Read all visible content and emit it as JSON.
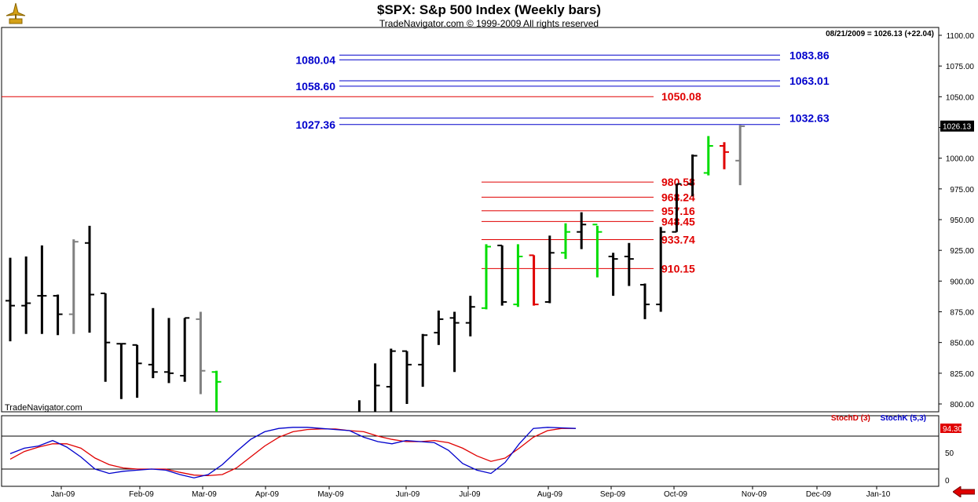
{
  "header": {
    "title": "$SPX:  S&p 500 Index  (Weekly bars)",
    "subtitle": "TradeNavigator.com © 1999-2009 All rights reserved",
    "readout": "08/21/2009 = 1026.13 (+22.04)",
    "watermark": "TradeNavigator.com"
  },
  "icons": {
    "logo": "gold-navigator-logo-icon",
    "scroll": "red-left-arrow-icon"
  },
  "colors": {
    "bar": "#000000",
    "up_bar": "#00dd00",
    "down_bar": "#e00000",
    "neutral_bar": "#808080",
    "support": "#e00000",
    "resistance": "#0000cc",
    "stoch_d": "#e00000",
    "stoch_k": "#0000cc"
  },
  "chart_data": [
    {
      "type": "ohlc",
      "title": "$SPX:  S&p 500 Index  (Weekly bars)",
      "ylim": [
        790,
        1100
      ],
      "yticks": [
        "800.00",
        "825.00",
        "850.00",
        "875.00",
        "900.00",
        "925.00",
        "950.00",
        "975.00",
        "1000.00",
        "1025.00",
        "1050.00",
        "1075.00",
        "1100.00"
      ],
      "last_label": "1026.13",
      "x_labels": [
        "Jan-09",
        "Feb-09",
        "Mar-09",
        "Apr-09",
        "May-09",
        "Jun-09",
        "Jul-09",
        "Aug-09",
        "Sep-09",
        "Oct-09",
        "Nov-09",
        "Dec-09",
        "Jan-10"
      ],
      "bars": [
        {
          "o": 884,
          "h": 919,
          "l": 851,
          "c": 880,
          "k": "b"
        },
        {
          "o": 880,
          "h": 920,
          "l": 857,
          "c": 882,
          "k": "b"
        },
        {
          "o": 888,
          "h": 929,
          "l": 857,
          "c": 888,
          "k": "b"
        },
        {
          "o": 888,
          "h": 889,
          "l": 856,
          "c": 873,
          "k": "b"
        },
        {
          "o": 873,
          "h": 934,
          "l": 857,
          "c": 932,
          "k": "g"
        },
        {
          "o": 931,
          "h": 945,
          "l": 858,
          "c": 889,
          "k": "b"
        },
        {
          "o": 890,
          "h": 890,
          "l": 818,
          "c": 850,
          "k": "b"
        },
        {
          "o": 849,
          "h": 849,
          "l": 804,
          "c": 849,
          "k": "b"
        },
        {
          "o": 848,
          "h": 848,
          "l": 805,
          "c": 833,
          "k": "b"
        },
        {
          "o": 832,
          "h": 878,
          "l": 821,
          "c": 826,
          "k": "b"
        },
        {
          "o": 826,
          "h": 870,
          "l": 817,
          "c": 825,
          "k": "b"
        },
        {
          "o": 823,
          "h": 870,
          "l": 818,
          "c": 870,
          "k": "b"
        },
        {
          "o": 869,
          "h": 875,
          "l": 808,
          "c": 827,
          "k": "g"
        },
        {
          "o": 826,
          "h": 827,
          "l": 790,
          "c": 818,
          "k": "u"
        },
        {
          "o": 790,
          "h": 790,
          "l": 790,
          "c": 790,
          "k": "b"
        },
        {
          "o": 790,
          "h": 790,
          "l": 790,
          "c": 790,
          "k": "b"
        },
        {
          "o": 790,
          "h": 790,
          "l": 790,
          "c": 790,
          "k": "b"
        },
        {
          "o": 790,
          "h": 790,
          "l": 790,
          "c": 790,
          "k": "b"
        },
        {
          "o": 790,
          "h": 790,
          "l": 790,
          "c": 790,
          "k": "b"
        },
        {
          "o": 790,
          "h": 790,
          "l": 790,
          "c": 790,
          "k": "b"
        },
        {
          "o": 790,
          "h": 790,
          "l": 790,
          "c": 790,
          "k": "b"
        },
        {
          "o": 790,
          "h": 790,
          "l": 790,
          "c": 790,
          "k": "b"
        },
        {
          "o": 790,
          "h": 803,
          "l": 790,
          "c": 790,
          "k": "b"
        },
        {
          "o": 790,
          "h": 833,
          "l": 790,
          "c": 815,
          "k": "b"
        },
        {
          "o": 814,
          "h": 845,
          "l": 793,
          "c": 843,
          "k": "b"
        },
        {
          "o": 843,
          "h": 843,
          "l": 800,
          "c": 832,
          "k": "b"
        },
        {
          "o": 832,
          "h": 857,
          "l": 814,
          "c": 856,
          "k": "b"
        },
        {
          "o": 858,
          "h": 876,
          "l": 848,
          "c": 869,
          "k": "b"
        },
        {
          "o": 870,
          "h": 875,
          "l": 826,
          "c": 866,
          "k": "b"
        },
        {
          "o": 866,
          "h": 888,
          "l": 855,
          "c": 879,
          "k": "b"
        },
        {
          "o": 878,
          "h": 930,
          "l": 877,
          "c": 928,
          "k": "u"
        },
        {
          "o": 929,
          "h": 929,
          "l": 880,
          "c": 883,
          "k": "b"
        },
        {
          "o": 881,
          "h": 930,
          "l": 879,
          "c": 920,
          "k": "u"
        },
        {
          "o": 921,
          "h": 921,
          "l": 880,
          "c": 881,
          "k": "d"
        },
        {
          "o": 883,
          "h": 937,
          "l": 882,
          "c": 923,
          "k": "b"
        },
        {
          "o": 923,
          "h": 947,
          "l": 918,
          "c": 940,
          "k": "u"
        },
        {
          "o": 940,
          "h": 956,
          "l": 926,
          "c": 946,
          "k": "b"
        },
        {
          "o": 946,
          "h": 945,
          "l": 903,
          "c": 940,
          "k": "u"
        },
        {
          "o": 920,
          "h": 923,
          "l": 888,
          "c": 918,
          "k": "b"
        },
        {
          "o": 920,
          "h": 931,
          "l": 896,
          "c": 918,
          "k": "b"
        },
        {
          "o": 897,
          "h": 898,
          "l": 869,
          "c": 881,
          "k": "b"
        },
        {
          "o": 881,
          "h": 944,
          "l": 875,
          "c": 940,
          "k": "b"
        },
        {
          "o": 940,
          "h": 979,
          "l": 940,
          "c": 979,
          "k": "b"
        },
        {
          "o": 979,
          "h": 1003,
          "l": 969,
          "c": 1002,
          "k": "b"
        },
        {
          "o": 988,
          "h": 1018,
          "l": 986,
          "c": 1010,
          "k": "u"
        },
        {
          "o": 1010,
          "h": 1013,
          "l": 991,
          "c": 1005,
          "k": "d"
        },
        {
          "o": 998,
          "h": 1027,
          "l": 978,
          "c": 1026,
          "k": "g"
        }
      ],
      "levels": [
        {
          "value": 1083.86,
          "label": "1083.86",
          "side": "right",
          "color": "blue"
        },
        {
          "value": 1080.04,
          "label": "1080.04",
          "side": "left",
          "color": "blue"
        },
        {
          "value": 1063.01,
          "label": "1063.01",
          "side": "right",
          "color": "blue"
        },
        {
          "value": 1058.6,
          "label": "1058.60",
          "side": "left",
          "color": "blue"
        },
        {
          "value": 1050.08,
          "label": "1050.08",
          "side": "right",
          "color": "red",
          "full": true
        },
        {
          "value": 1032.63,
          "label": "1032.63",
          "side": "right",
          "color": "blue"
        },
        {
          "value": 1027.36,
          "label": "1027.36",
          "side": "left",
          "color": "blue"
        },
        {
          "value": 980.58,
          "label": "980.58",
          "side": "right",
          "color": "red"
        },
        {
          "value": 968.24,
          "label": "968.24",
          "side": "right",
          "color": "red"
        },
        {
          "value": 957.16,
          "label": "957.16",
          "side": "right",
          "color": "red"
        },
        {
          "value": 948.45,
          "label": "948.45",
          "side": "right",
          "color": "red"
        },
        {
          "value": 933.74,
          "label": "933.74",
          "side": "right",
          "color": "red"
        },
        {
          "value": 910.15,
          "label": "910.15",
          "side": "right",
          "color": "red"
        }
      ]
    },
    {
      "type": "line",
      "ylim": [
        0,
        100
      ],
      "yticks": [
        "0",
        "50"
      ],
      "hlines": [
        20,
        80
      ],
      "last_label": "94.30",
      "series": [
        {
          "name": "StochD (3)",
          "color": "red",
          "values": [
            38,
            52,
            60,
            66,
            66,
            58,
            40,
            28,
            22,
            20,
            20,
            20,
            14,
            9,
            8,
            10,
            22,
            42,
            62,
            78,
            88,
            92,
            93,
            93,
            90,
            88,
            80,
            74,
            70,
            70,
            72,
            68,
            58,
            44,
            34,
            40,
            58,
            78,
            90,
            94,
            94
          ]
        },
        {
          "name": "StochK (5,3)",
          "color": "blue",
          "values": [
            48,
            58,
            62,
            72,
            60,
            42,
            20,
            12,
            16,
            18,
            20,
            18,
            10,
            4,
            10,
            28,
            52,
            74,
            88,
            94,
            96,
            96,
            94,
            92,
            90,
            78,
            70,
            66,
            72,
            70,
            68,
            54,
            30,
            18,
            12,
            32,
            66,
            94,
            96,
            95,
            94
          ]
        }
      ]
    }
  ]
}
